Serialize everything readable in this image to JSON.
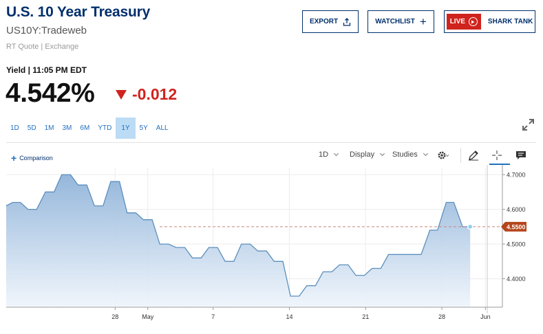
{
  "header": {
    "title": "U.S. 10 Year Treasury",
    "symbol": "US10Y:Tradeweb",
    "source": "RT Quote | Exchange",
    "export_label": "EXPORT",
    "watchlist_label": "WATCHLIST",
    "live_label": "LIVE",
    "shark_tank_label": "SHARK TANK"
  },
  "quote": {
    "yield_label": "Yield | 11:05 PM EDT",
    "price": "4.542%",
    "change": "-0.012"
  },
  "ranges": [
    "1D",
    "5D",
    "1M",
    "3M",
    "6M",
    "YTD",
    "1Y",
    "5Y",
    "ALL"
  ],
  "active_range": "1Y",
  "toolbar": {
    "comparison_label": "Comparison",
    "interval_label": "1D",
    "display_label": "Display",
    "studies_label": "Studies"
  },
  "colors": {
    "brand": "#002f6c",
    "accent": "#1f6fbf",
    "down": "#d0231d",
    "line": "#5b8fbd",
    "last_label": "#b5451b",
    "active_range_bg": "#bcdcf5"
  },
  "chart_data": {
    "type": "area",
    "title": "",
    "xlabel": "",
    "ylabel": "",
    "ylim": [
      4.32,
      4.72
    ],
    "x_ticks": [
      {
        "label": "28",
        "index": 10
      },
      {
        "label": "May",
        "index": 13
      },
      {
        "label": "7",
        "index": 19
      },
      {
        "label": "14",
        "index": 26
      },
      {
        "label": "21",
        "index": 33
      },
      {
        "label": "28",
        "index": 40
      },
      {
        "label": "Jun",
        "index": 44
      }
    ],
    "y_ticks": [
      "4.7000",
      "4.6000",
      "4.5000",
      "4.4000"
    ],
    "y_tick_values": [
      4.7,
      4.6,
      4.5,
      4.4
    ],
    "last_value": 4.55,
    "last_value_label": "4.5500",
    "grid": true,
    "series": [
      {
        "values": [
          4.61,
          4.62,
          4.62,
          4.6,
          4.6,
          4.65,
          4.65,
          4.7,
          4.7,
          4.67,
          4.67,
          4.61,
          4.61,
          4.68,
          4.68,
          4.59,
          4.59,
          4.57,
          4.57,
          4.5,
          4.5,
          4.49,
          4.49,
          4.46,
          4.46,
          4.49,
          4.49,
          4.45,
          4.45,
          4.5,
          4.5,
          4.48,
          4.48,
          4.45,
          4.45,
          4.35,
          4.35,
          4.38,
          4.38,
          4.42,
          4.42,
          4.44,
          4.44,
          4.41,
          4.41,
          4.43,
          4.43,
          4.47,
          4.47,
          4.47,
          4.47,
          4.47,
          4.54,
          4.54,
          4.62,
          4.62,
          4.55,
          4.55
        ],
        "x_index": [
          0,
          0.6,
          1.3,
          2,
          2.8,
          3.6,
          4.4,
          5.1,
          5.9,
          6.6,
          7.4,
          8.1,
          8.9,
          9.6,
          10.4,
          11.1,
          11.9,
          12.6,
          13.4,
          14.1,
          14.9,
          15.6,
          16.4,
          17.1,
          17.9,
          18.6,
          19.4,
          20.1,
          20.9,
          21.6,
          22.4,
          23.1,
          23.9,
          24.6,
          25.4,
          26.1,
          26.9,
          27.6,
          28.4,
          29.1,
          29.9,
          30.6,
          31.4,
          32.1,
          32.9,
          33.6,
          34.4,
          35.1,
          35.9,
          36.6,
          37.4,
          38.1,
          38.9,
          39.6,
          40.4,
          41.1,
          41.9,
          42.6
        ]
      }
    ]
  }
}
